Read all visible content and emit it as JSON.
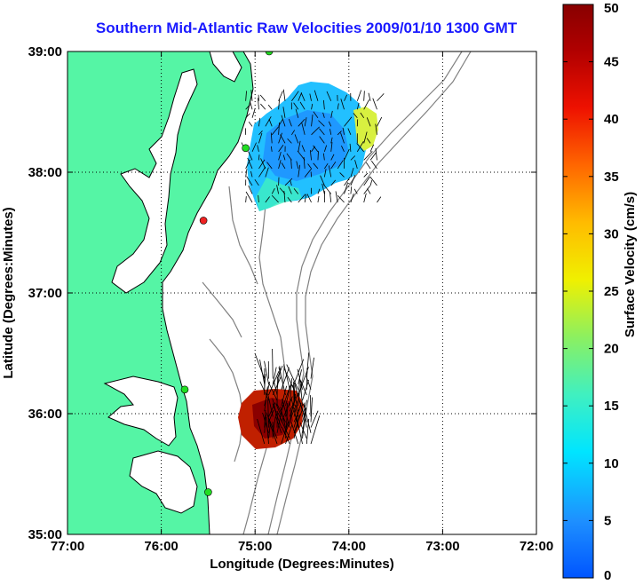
{
  "chart_data": {
    "type": "scatter",
    "title": "Southern Mid-Atlantic Raw Velocities 2009/01/10 1300 GMT",
    "xlabel": "Longitude (Degrees:Minutes)",
    "ylabel": "Latitude (Degrees:Minutes)",
    "xlim": [
      -77,
      -72
    ],
    "ylim": [
      35,
      39
    ],
    "grid": true,
    "x_ticks": [
      {
        "value": -77,
        "label": "77:00"
      },
      {
        "value": -76,
        "label": "76:00"
      },
      {
        "value": -75,
        "label": "75:00"
      },
      {
        "value": -74,
        "label": "74:00"
      },
      {
        "value": -73,
        "label": "73:00"
      },
      {
        "value": -72,
        "label": "72:00"
      }
    ],
    "y_ticks": [
      {
        "value": 35,
        "label": "35:00"
      },
      {
        "value": 36,
        "label": "36:00"
      },
      {
        "value": 37,
        "label": "37:00"
      },
      {
        "value": 38,
        "label": "38:00"
      },
      {
        "value": 39,
        "label": "39:00"
      }
    ],
    "colorbar": {
      "label": "Surface Velocity (cm/s)",
      "range": [
        0,
        50
      ],
      "ticks": [
        0,
        5,
        10,
        15,
        20,
        25,
        30,
        35,
        40,
        45,
        50
      ]
    },
    "velocity_fields": [
      {
        "lon_range": [
          -75.1,
          -73.7
        ],
        "lat_range": [
          37.75,
          38.65
        ],
        "speed_range_cm_s": [
          5,
          25
        ]
      },
      {
        "lon_range": [
          -74.9,
          -74.4
        ],
        "lat_range": [
          35.75,
          36.3
        ],
        "speed_range_cm_s": [
          40,
          48
        ]
      }
    ],
    "station_markers": [
      {
        "lon": -74.85,
        "lat": 39.0,
        "color": "#22dd22"
      },
      {
        "lon": -75.1,
        "lat": 38.2,
        "color": "#22dd22"
      },
      {
        "lon": -75.55,
        "lat": 37.6,
        "color": "#ee2222"
      },
      {
        "lon": -75.75,
        "lat": 36.2,
        "color": "#22dd22"
      },
      {
        "lon": -75.5,
        "lat": 35.35,
        "color": "#22dd22"
      }
    ],
    "colors": {
      "land": "#55f5a5",
      "title": "#1a1aff"
    }
  }
}
